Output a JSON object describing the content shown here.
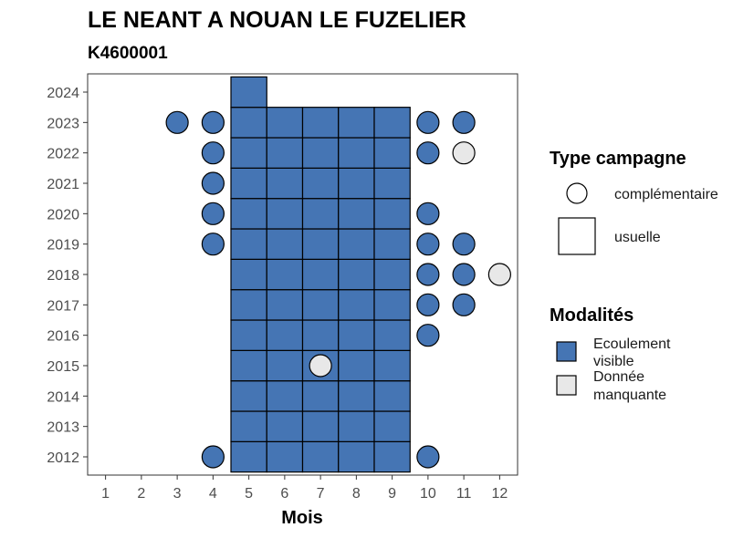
{
  "chart_data": {
    "type": "heatmap",
    "title": "LE NEANT A NOUAN LE FUZELIER",
    "subtitle": "K4600001",
    "xlabel": "Mois",
    "ylabel": "",
    "x_ticks": [
      1,
      2,
      3,
      4,
      5,
      6,
      7,
      8,
      9,
      10,
      11,
      12
    ],
    "y_ticks": [
      2012,
      2013,
      2014,
      2015,
      2016,
      2017,
      2018,
      2019,
      2020,
      2021,
      2022,
      2023,
      2024
    ],
    "xlim": [
      0.5,
      12.5
    ],
    "ylim": [
      2011.4,
      2024.6
    ],
    "colors": {
      "Ecoulement visible": "#4575b4",
      "Donnée manquante": "#e8e8e8"
    },
    "legends": [
      {
        "title": "Type campagne",
        "entries": [
          {
            "label": "complémentaire",
            "shape": "circle"
          },
          {
            "label": "usuelle",
            "shape": "square"
          }
        ]
      },
      {
        "title": "Modalités",
        "entries": [
          {
            "label": [
              "Ecoulement",
              "visible"
            ],
            "modalite": "Ecoulement visible"
          },
          {
            "label": [
              "Donnée",
              "manquante"
            ],
            "modalite": "Donnée manquante"
          }
        ]
      }
    ],
    "observations": [
      {
        "year": 2012,
        "month": 4,
        "type": "complémentaire",
        "modalite": "Ecoulement visible"
      },
      {
        "year": 2012,
        "month": 10,
        "type": "complémentaire",
        "modalite": "Ecoulement visible"
      },
      {
        "year": 2015,
        "month": 7,
        "type": "complémentaire",
        "modalite": "Donnée manquante"
      },
      {
        "year": 2016,
        "month": 10,
        "type": "complémentaire",
        "modalite": "Ecoulement visible"
      },
      {
        "year": 2017,
        "month": 10,
        "type": "complémentaire",
        "modalite": "Ecoulement visible"
      },
      {
        "year": 2017,
        "month": 11,
        "type": "complémentaire",
        "modalite": "Ecoulement visible"
      },
      {
        "year": 2018,
        "month": 10,
        "type": "complémentaire",
        "modalite": "Ecoulement visible"
      },
      {
        "year": 2018,
        "month": 11,
        "type": "complémentaire",
        "modalite": "Ecoulement visible"
      },
      {
        "year": 2018,
        "month": 12,
        "type": "complémentaire",
        "modalite": "Donnée manquante"
      },
      {
        "year": 2019,
        "month": 4,
        "type": "complémentaire",
        "modalite": "Ecoulement visible"
      },
      {
        "year": 2019,
        "month": 10,
        "type": "complémentaire",
        "modalite": "Ecoulement visible"
      },
      {
        "year": 2019,
        "month": 11,
        "type": "complémentaire",
        "modalite": "Ecoulement visible"
      },
      {
        "year": 2020,
        "month": 4,
        "type": "complémentaire",
        "modalite": "Ecoulement visible"
      },
      {
        "year": 2020,
        "month": 10,
        "type": "complémentaire",
        "modalite": "Ecoulement visible"
      },
      {
        "year": 2021,
        "month": 4,
        "type": "complémentaire",
        "modalite": "Ecoulement visible"
      },
      {
        "year": 2022,
        "month": 4,
        "type": "complémentaire",
        "modalite": "Ecoulement visible"
      },
      {
        "year": 2022,
        "month": 10,
        "type": "complémentaire",
        "modalite": "Ecoulement visible"
      },
      {
        "year": 2022,
        "month": 11,
        "type": "complémentaire",
        "modalite": "Donnée manquante"
      },
      {
        "year": 2023,
        "month": 3,
        "type": "complémentaire",
        "modalite": "Ecoulement visible"
      },
      {
        "year": 2023,
        "month": 4,
        "type": "complémentaire",
        "modalite": "Ecoulement visible"
      },
      {
        "year": 2023,
        "month": 10,
        "type": "complémentaire",
        "modalite": "Ecoulement visible"
      },
      {
        "year": 2023,
        "month": 11,
        "type": "complémentaire",
        "modalite": "Ecoulement visible"
      },
      {
        "year": 2024,
        "month": 5,
        "type": "usuelle",
        "modalite": "Ecoulement visible"
      }
    ],
    "usuelle_grid": {
      "years": [
        2012,
        2013,
        2014,
        2015,
        2016,
        2017,
        2018,
        2019,
        2020,
        2021,
        2022,
        2023
      ],
      "months": [
        5,
        6,
        7,
        8,
        9
      ],
      "modalite": "Ecoulement visible"
    }
  }
}
